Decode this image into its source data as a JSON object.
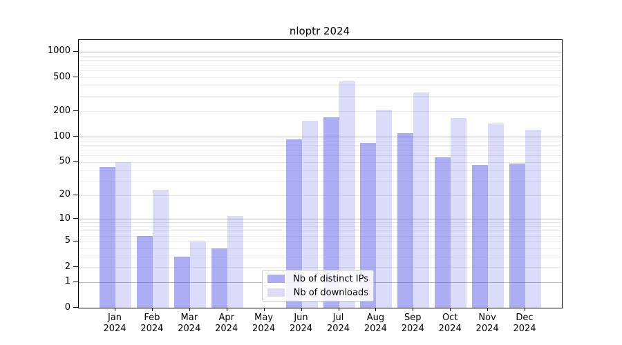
{
  "chart_data": {
    "type": "bar",
    "title": "nloptr 2024",
    "scale": "log1p",
    "categories": [
      "Jan",
      "Feb",
      "Mar",
      "Apr",
      "May",
      "Jun",
      "Jul",
      "Aug",
      "Sep",
      "Oct",
      "Nov",
      "Dec"
    ],
    "category_year": "2024",
    "series": [
      {
        "name": "Nb of distinct IPs",
        "color": "rgba(92,92,234,0.5)",
        "values": [
          44,
          6,
          3,
          4,
          0,
          93,
          170,
          85,
          110,
          57,
          46,
          48
        ]
      },
      {
        "name": "Nb of downloads",
        "color": "rgba(92,92,234,0.22)",
        "values": [
          50,
          23,
          5,
          11,
          0,
          155,
          445,
          210,
          330,
          165,
          142,
          120
        ]
      }
    ],
    "y_ticks": [
      1000,
      500,
      200,
      100,
      50,
      20,
      10,
      5,
      2,
      1,
      0
    ],
    "y_major_gridlines": [
      1,
      10,
      100,
      1000
    ],
    "ylim": [
      0,
      1370
    ],
    "grid": "on",
    "legend_position": "lower center-left inside",
    "colors": {
      "bar_base": "#5c5cea",
      "major_grid": "#b9b9b9",
      "minor_grid": "#ebebeb",
      "axis": "#000000"
    }
  }
}
